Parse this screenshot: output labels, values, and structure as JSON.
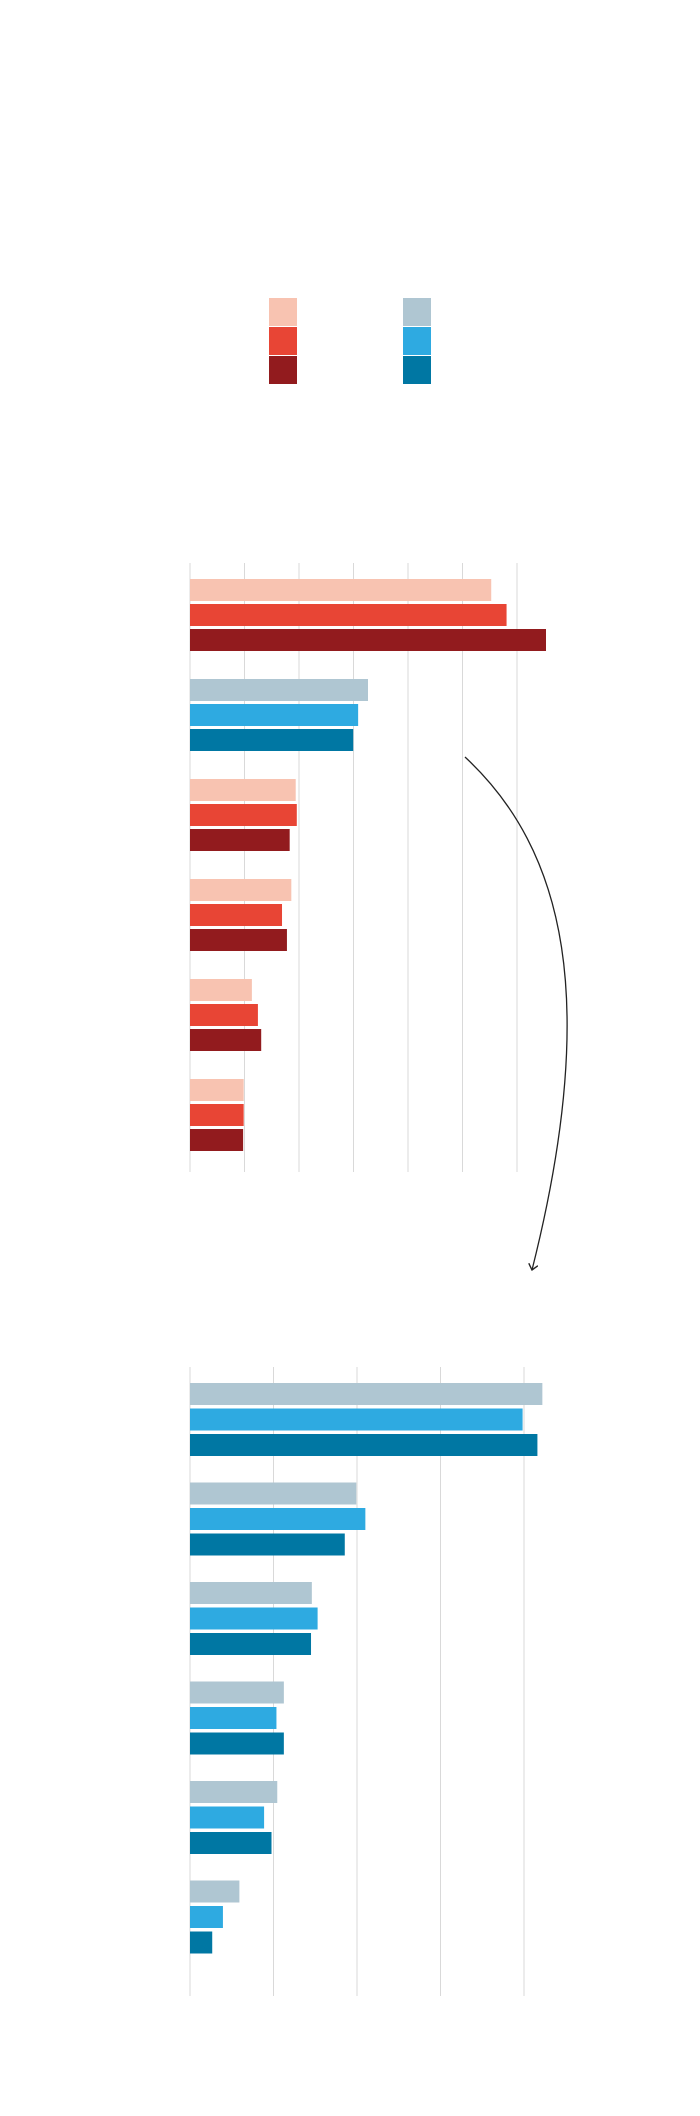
{
  "legend": {
    "swatches": [
      {
        "color": "#f8c3b1"
      },
      {
        "color": "#e84535"
      },
      {
        "color": "#921b1e"
      },
      {
        "color": "#afc6d2"
      },
      {
        "color": "#2eaae1"
      },
      {
        "color": "#0077a3"
      }
    ]
  },
  "chart_data": [
    {
      "type": "bar",
      "orientation": "horizontal",
      "grid": true,
      "xlim": [
        0,
        6.5
      ],
      "categories": [
        "",
        "",
        "",
        "",
        "",
        ""
      ],
      "series": [
        {
          "color": "#f8c3b1",
          "values": [
            5.5,
            null,
            1.93,
            1.85,
            1.13,
            0.98
          ]
        },
        {
          "color": "#e84535",
          "values": [
            5.78,
            null,
            1.95,
            1.68,
            1.24,
            0.98
          ]
        },
        {
          "color": "#921b1e",
          "values": [
            6.5,
            null,
            1.82,
            1.77,
            1.3,
            0.97
          ]
        },
        {
          "color": "#afc6d2",
          "values": [
            null,
            3.25,
            null,
            null,
            null,
            null
          ]
        },
        {
          "color": "#2eaae1",
          "values": [
            null,
            3.07,
            null,
            null,
            null,
            null
          ]
        },
        {
          "color": "#0077a3",
          "values": [
            null,
            2.98,
            null,
            null,
            null,
            null
          ]
        }
      ]
    },
    {
      "type": "bar",
      "orientation": "horizontal",
      "grid": true,
      "xlim": [
        0,
        4.3
      ],
      "categories": [
        "",
        "",
        "",
        "",
        "",
        ""
      ],
      "series": [
        {
          "color": "#afc6d2",
          "values": [
            4.28,
            2.02,
            1.48,
            1.14,
            1.06,
            0.6
          ]
        },
        {
          "color": "#2eaae1",
          "values": [
            4.04,
            2.13,
            1.55,
            1.05,
            0.9,
            0.4
          ]
        },
        {
          "color": "#0077a3",
          "values": [
            4.22,
            1.88,
            1.47,
            1.14,
            0.99,
            0.27
          ]
        }
      ]
    }
  ]
}
